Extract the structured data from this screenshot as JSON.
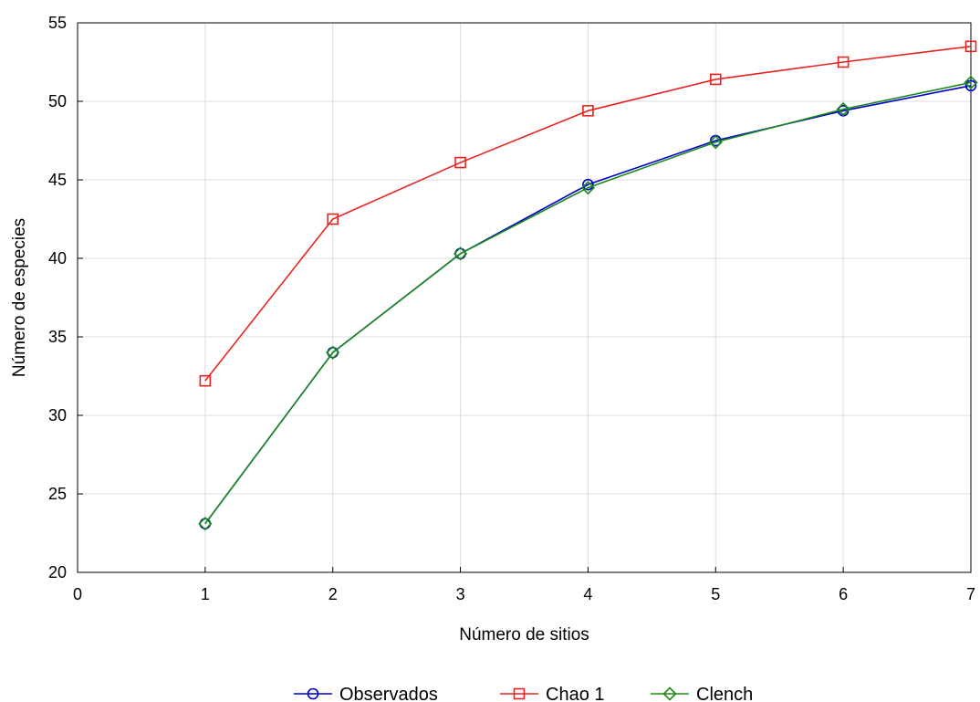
{
  "chart_data": {
    "type": "line",
    "title": "",
    "xlabel": "Número de sitios",
    "ylabel": "Número de especies",
    "xlim": [
      0,
      7
    ],
    "ylim": [
      20,
      55
    ],
    "xticks": [
      0,
      1,
      2,
      3,
      4,
      5,
      6,
      7
    ],
    "yticks": [
      20,
      25,
      30,
      35,
      40,
      45,
      50,
      55
    ],
    "grid": true,
    "legend_position": "bottom",
    "x": [
      1,
      2,
      3,
      4,
      5,
      6,
      7
    ],
    "series": [
      {
        "name": "Observados",
        "marker": "circle",
        "color": "#0000cc",
        "values": [
          23.1,
          34.0,
          40.3,
          44.7,
          47.5,
          49.4,
          51.0
        ]
      },
      {
        "name": "Chao 1",
        "marker": "square",
        "color": "#e8231f",
        "values": [
          32.2,
          42.5,
          46.1,
          49.4,
          51.4,
          52.5,
          53.5
        ]
      },
      {
        "name": "Clench",
        "marker": "diamond",
        "color": "#1a8a1a",
        "values": [
          23.1,
          34.0,
          40.3,
          44.5,
          47.4,
          49.5,
          51.2
        ]
      }
    ]
  }
}
